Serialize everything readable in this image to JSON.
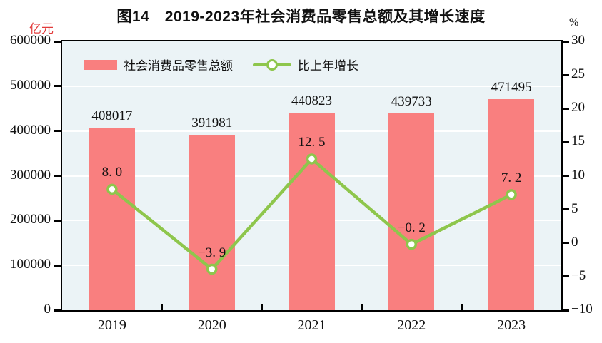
{
  "title": "图14　2019-2023年社会消费品零售总额及其增长速度",
  "colors": {
    "bar": "#f97f7f",
    "line": "#8ec64c",
    "marker_fill": "#ffffff",
    "plot_bg": "#ebf3f6",
    "grid": "#ffffff",
    "axis": "#000000",
    "unit_left_text": "#e23b3b",
    "text": "#111111"
  },
  "legend": {
    "bar_label": "社会消费品零售总额",
    "line_label": "比上年增长"
  },
  "chart_data": {
    "type": "combo-bar-line",
    "title": "图14　2019-2023年社会消费品零售总额及其增长速度",
    "categories": [
      "2019",
      "2020",
      "2021",
      "2022",
      "2023"
    ],
    "series": [
      {
        "name": "社会消费品零售总额",
        "type": "bar",
        "axis": "left",
        "values": [
          408017,
          391981,
          440823,
          439733,
          471495
        ],
        "value_labels": [
          "408017",
          "391981",
          "440823",
          "439733",
          "471495"
        ],
        "color": "#f97f7f"
      },
      {
        "name": "比上年增长",
        "type": "line",
        "axis": "right",
        "values": [
          8.0,
          -3.9,
          12.5,
          -0.2,
          7.2
        ],
        "value_labels": [
          "8. 0",
          "−3. 9",
          "12. 5",
          "−0. 2",
          "7. 2"
        ],
        "color": "#8ec64c",
        "marker": "circle-white-fill"
      }
    ],
    "left_axis": {
      "unit": "亿元",
      "min": 0,
      "max": 600000,
      "step": 100000,
      "tick_labels": [
        "600000",
        "500000",
        "400000",
        "300000",
        "200000",
        "100000",
        "0"
      ]
    },
    "right_axis": {
      "unit": "%",
      "min": -10,
      "max": 30,
      "step": 5,
      "tick_labels": [
        "30",
        "25",
        "20",
        "15",
        "10",
        "5",
        "0",
        "−5",
        "−10"
      ]
    },
    "legend_position": "top-left-inside",
    "grid": "horizontal-white-lines-at-left-axis-steps"
  }
}
